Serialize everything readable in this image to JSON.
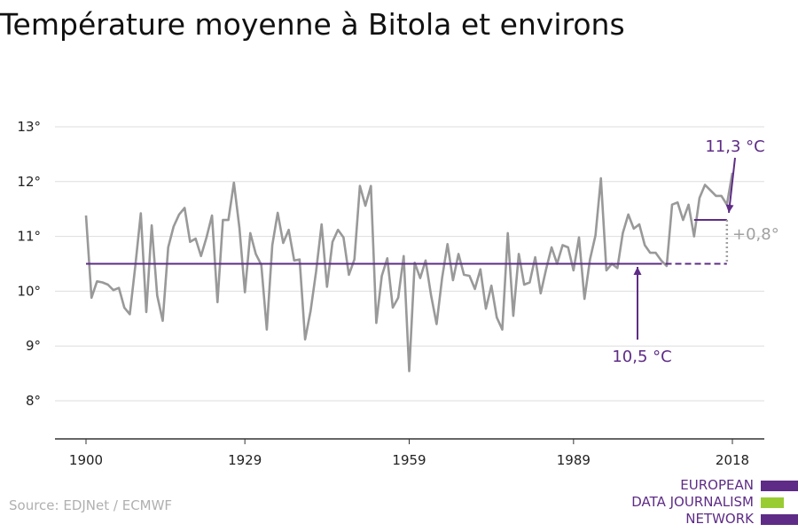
{
  "chart_data": {
    "type": "line",
    "title": "Température moyenne à Bitola et environs",
    "xlabel": "",
    "ylabel": "",
    "x_ticks": [
      "1900",
      "1929",
      "1959",
      "1989",
      "2018"
    ],
    "y_ticks": [
      "8°",
      "9°",
      "10°",
      "11°",
      "12°",
      "13°"
    ],
    "xlim": [
      1900,
      2018
    ],
    "ylim": [
      7.5,
      13
    ],
    "grid": true,
    "series": [
      {
        "color": "#999999",
        "x": [
          1900,
          1901,
          1902,
          1903,
          1904,
          1905,
          1906,
          1907,
          1908,
          1909,
          1910,
          1911,
          1912,
          1913,
          1914,
          1915,
          1916,
          1917,
          1918,
          1919,
          1920,
          1921,
          1922,
          1923,
          1924,
          1925,
          1926,
          1927,
          1928,
          1929,
          1930,
          1931,
          1932,
          1933,
          1934,
          1935,
          1936,
          1937,
          1938,
          1939,
          1940,
          1941,
          1942,
          1943,
          1944,
          1945,
          1946,
          1947,
          1948,
          1949,
          1950,
          1951,
          1952,
          1953,
          1954,
          1955,
          1956,
          1957,
          1958,
          1959,
          1960,
          1961,
          1962,
          1963,
          1964,
          1965,
          1966,
          1967,
          1968,
          1969,
          1970,
          1971,
          1972,
          1973,
          1974,
          1975,
          1976,
          1977,
          1978,
          1979,
          1980,
          1981,
          1982,
          1983,
          1984,
          1985,
          1986,
          1987,
          1988,
          1989,
          1990,
          1991,
          1992,
          1993,
          1994,
          1995,
          1996,
          1997,
          1998,
          1999,
          2000,
          2001,
          2002,
          2003,
          2004,
          2005,
          2006,
          2007,
          2008,
          2009,
          2010,
          2011,
          2012,
          2013,
          2014,
          2015,
          2016,
          2017,
          2018
        ],
        "y": [
          11.38,
          9.88,
          10.18,
          10.16,
          10.12,
          10.02,
          10.06,
          9.7,
          9.58,
          10.46,
          11.42,
          9.62,
          11.2,
          9.92,
          9.46,
          10.8,
          11.18,
          11.4,
          11.52,
          10.9,
          10.96,
          10.64,
          10.98,
          11.38,
          9.8,
          11.3,
          11.3,
          11.98,
          11.16,
          9.98,
          11.06,
          10.68,
          10.48,
          9.3,
          10.84,
          11.43,
          10.88,
          11.12,
          10.56,
          10.58,
          9.12,
          9.64,
          10.36,
          11.22,
          10.08,
          10.9,
          11.12,
          10.98,
          10.3,
          10.58,
          11.92,
          11.56,
          11.92,
          9.42,
          10.28,
          10.6,
          9.7,
          9.88,
          10.64,
          8.54,
          10.52,
          10.24,
          10.56,
          9.92,
          9.4,
          10.24,
          10.86,
          10.2,
          10.68,
          10.3,
          10.28,
          10.04,
          10.4,
          9.68,
          10.1,
          9.52,
          9.3,
          11.06,
          9.55,
          10.68,
          10.12,
          10.16,
          10.62,
          9.96,
          10.4,
          10.8,
          10.5,
          10.84,
          10.8,
          10.38,
          10.98,
          9.86,
          10.58,
          11.02,
          12.06,
          10.38,
          10.5,
          10.42,
          11.06,
          11.4,
          11.14,
          11.22,
          10.84,
          10.7,
          10.7,
          10.56,
          10.46,
          11.58,
          11.62,
          11.3,
          11.58,
          11.0,
          11.7,
          11.94,
          11.84,
          11.74,
          11.74,
          11.58,
          12.16
        ]
      }
    ],
    "baseline": {
      "value": 10.5,
      "from": 1900,
      "to": 2004,
      "dashed_from": 2004,
      "dashed_to": 2017,
      "color": "#5e2c86"
    },
    "recent": {
      "value": 11.3,
      "from": 2011,
      "to": 2017,
      "color": "#5e2c86"
    },
    "difference_marker": {
      "x": 2017,
      "from": 10.5,
      "to": 11.3,
      "color": "#a0a0a0"
    },
    "annotations": {
      "recent_label": "11,3 °C",
      "baseline_label": "10,5 °C",
      "difference_label": "+0,8°"
    }
  },
  "footer": {
    "source": "Source: EDJNet / ECMWF",
    "logo_lines": [
      "EUROPEAN",
      "DATA JOURNALISM",
      "NETWORK"
    ],
    "logo_colors": [
      "#5e2c86",
      "#99cc33",
      "#5e2c86"
    ]
  }
}
